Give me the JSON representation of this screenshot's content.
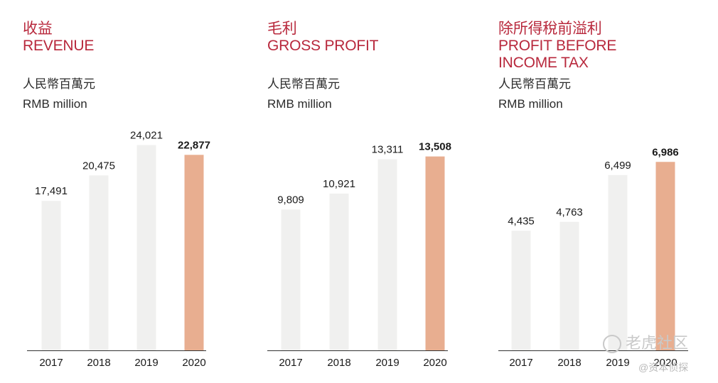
{
  "panels": [
    {
      "title_zh": "收益",
      "title_en": [
        "REVENUE"
      ],
      "unit_zh": "人民幣百萬元",
      "unit_en": "RMB million"
    },
    {
      "title_zh": "毛利",
      "title_en": [
        "GROSS PROFIT"
      ],
      "unit_zh": "人民幣百萬元",
      "unit_en": "RMB million"
    },
    {
      "title_zh": "除所得稅前溢利",
      "title_en": [
        "PROFIT BEFORE",
        "INCOME TAX"
      ],
      "unit_zh": "人民幣百萬元",
      "unit_en": "RMB million"
    }
  ],
  "watermark": {
    "main": "老虎社区",
    "sub": "@资本侦探"
  },
  "colors": {
    "title": "#b8283c",
    "bar": "#f0f0ef",
    "highlight_bar": "#e8ae90",
    "axis": "#333333"
  },
  "chart_data": [
    {
      "type": "bar",
      "title": "收益 REVENUE",
      "ylabel": "人民幣百萬元 RMB million",
      "categories": [
        "2017",
        "2018",
        "2019",
        "2020"
      ],
      "values": [
        17491,
        20475,
        24021,
        22877
      ],
      "value_labels": [
        "17,491",
        "20,475",
        "24,021",
        "22,877"
      ],
      "highlight_index": 3,
      "ylim": [
        0,
        26000
      ],
      "grid": false
    },
    {
      "type": "bar",
      "title": "毛利 GROSS PROFIT",
      "ylabel": "人民幣百萬元 RMB million",
      "categories": [
        "2017",
        "2018",
        "2019",
        "2020"
      ],
      "values": [
        9809,
        10921,
        13311,
        13508
      ],
      "value_labels": [
        "9,809",
        "10,921",
        "13,311",
        "13,508"
      ],
      "highlight_index": 3,
      "ylim": [
        0,
        15000
      ],
      "grid": false
    },
    {
      "type": "bar",
      "title": "除所得稅前溢利 PROFIT BEFORE INCOME TAX",
      "ylabel": "人民幣百萬元 RMB million",
      "categories": [
        "2017",
        "2018",
        "2019",
        "2020"
      ],
      "values": [
        4435,
        4763,
        6499,
        6986
      ],
      "value_labels": [
        "4,435",
        "4,763",
        "6,499",
        "6,986"
      ],
      "highlight_index": 3,
      "ylim": [
        0,
        8000
      ],
      "grid": false
    }
  ]
}
